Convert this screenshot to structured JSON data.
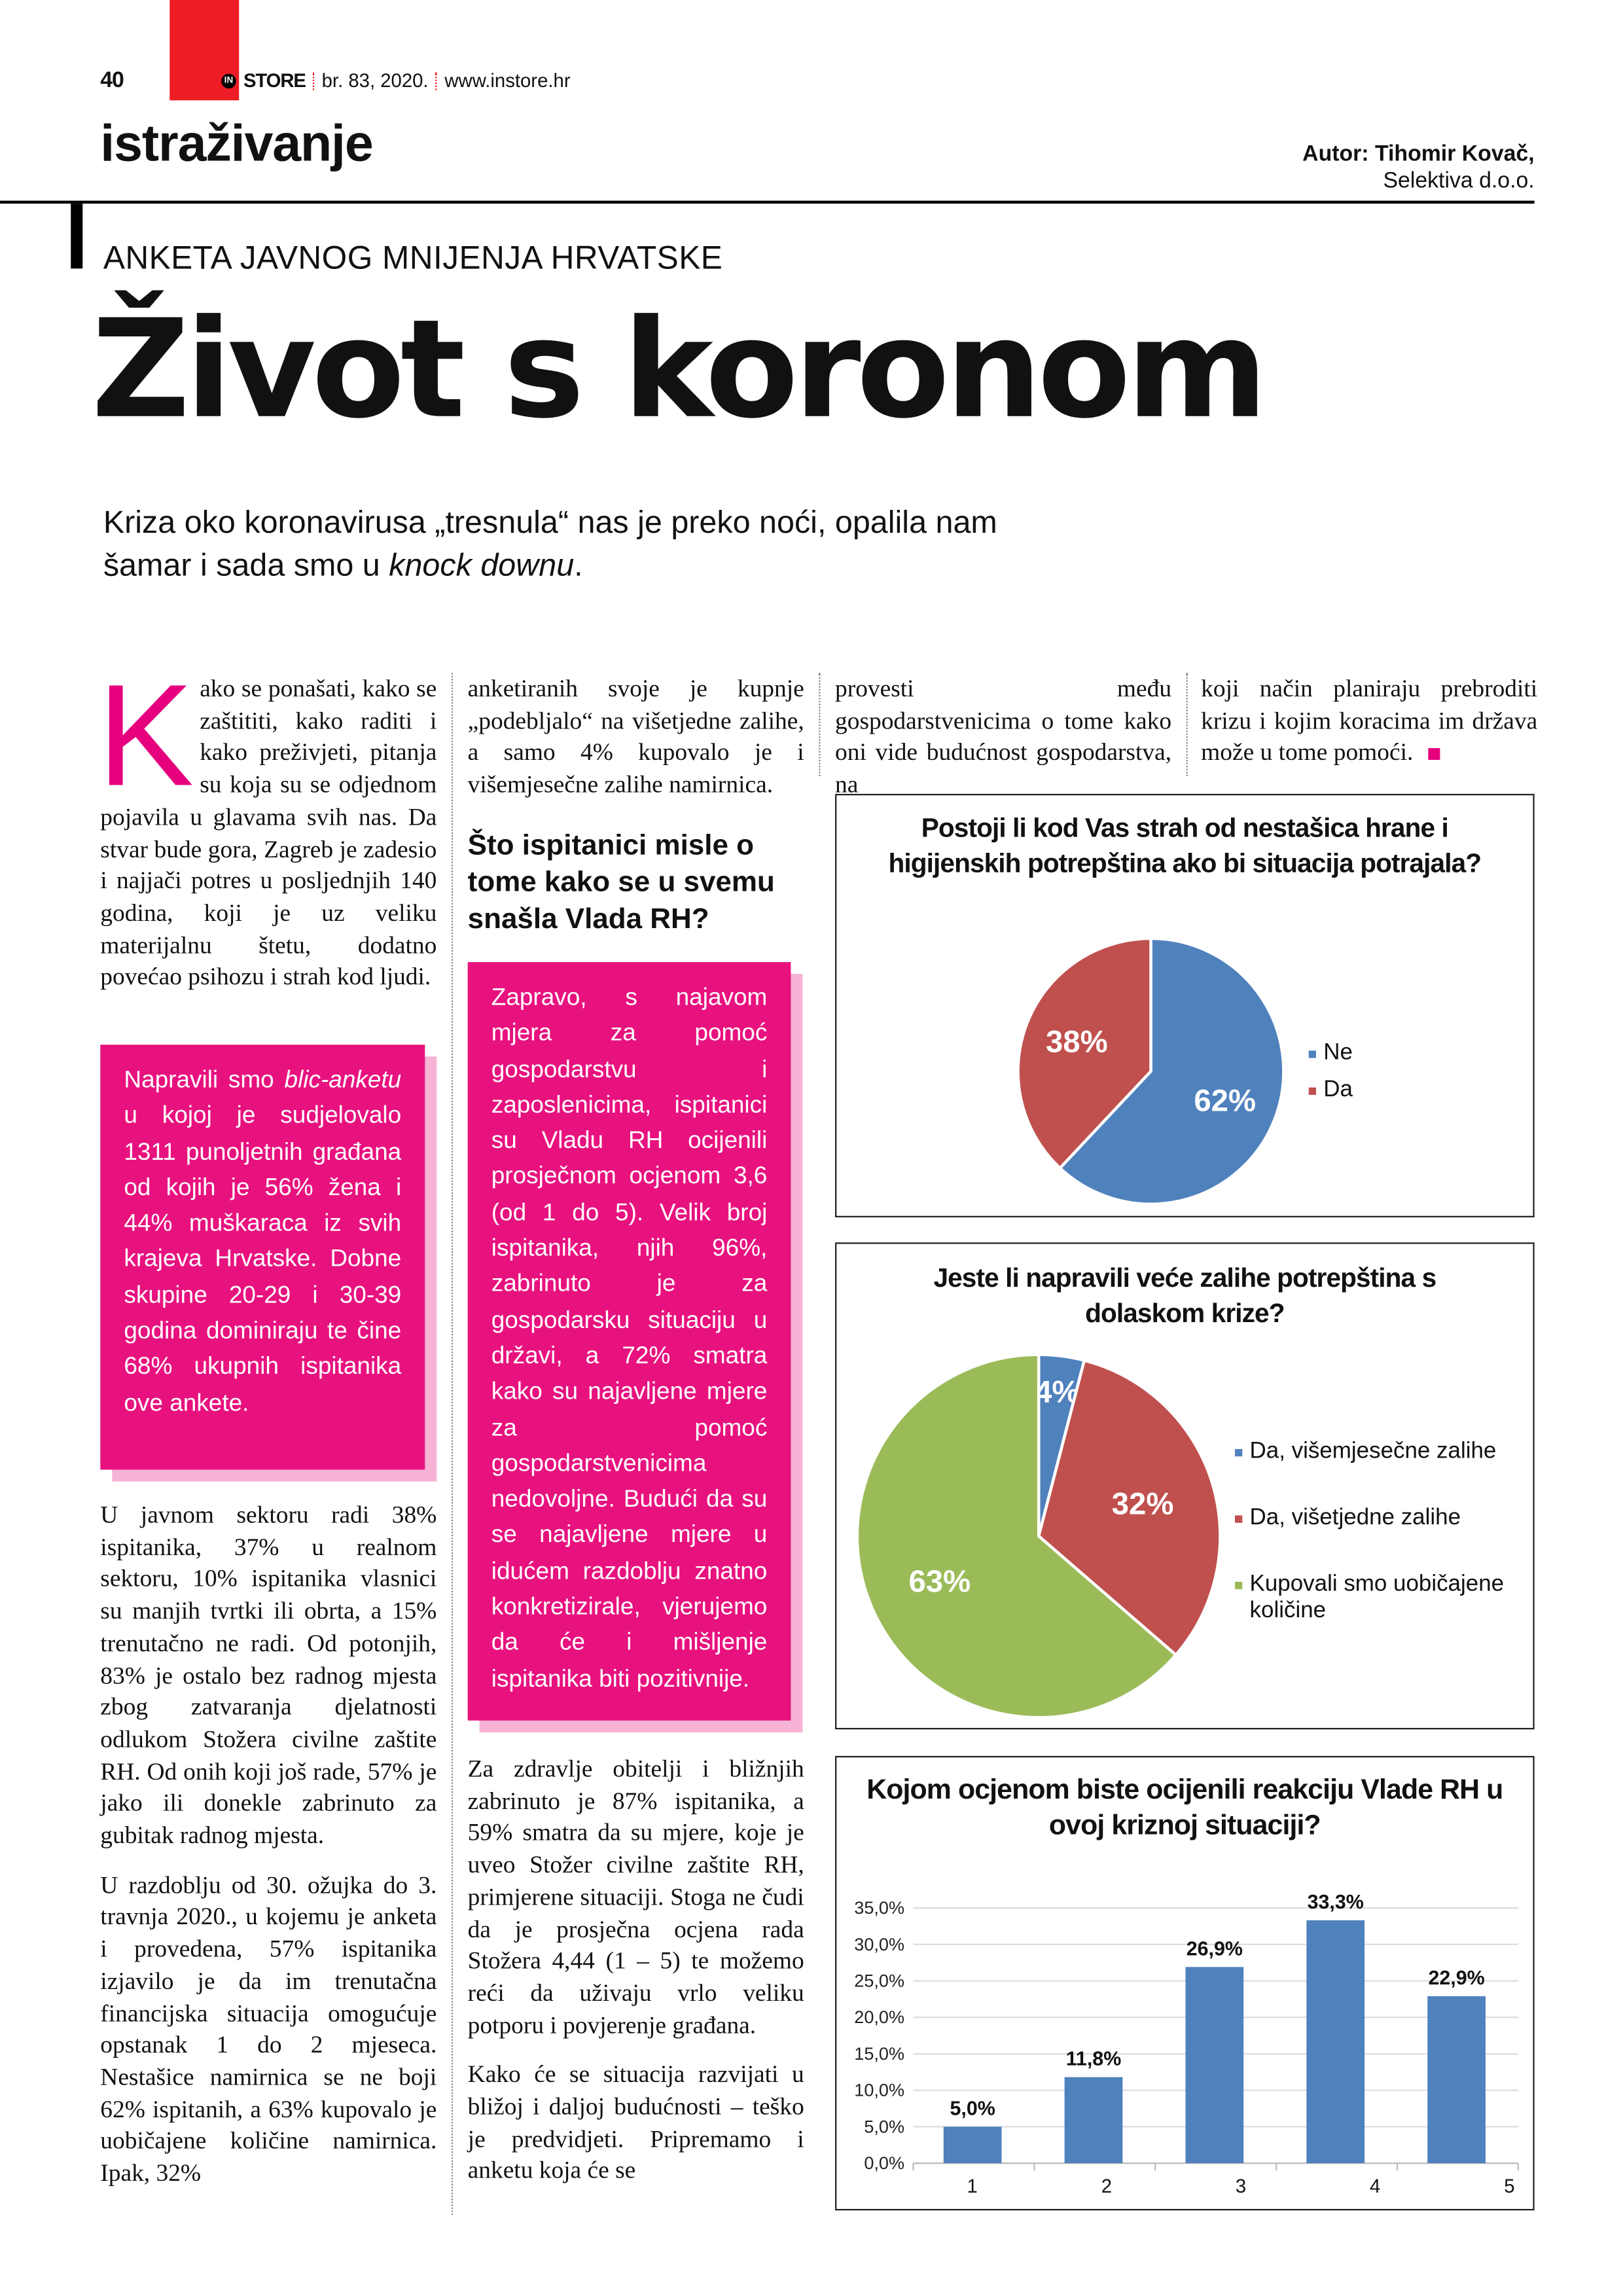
{
  "header": {
    "page_number": "40",
    "logo_in": "IN",
    "brand": "STORE",
    "issue": "br. 83, 2020.",
    "website": "www.instore.hr",
    "section": "istraživanje",
    "author_label": "Autor: Tihomir Kovač,",
    "author_company": "Selektiva d.o.o.",
    "accent_red": "#ee1c25"
  },
  "article": {
    "kicker": "ANKETA JAVNOG MNIJENJA HRVATSKE",
    "title": "Život s koronom",
    "deck_before": "Kriza oko koronavirusa „tresnula“ nas je preko noći, opalila nam šamar i sada smo u ",
    "deck_italic": "knock downu",
    "deck_after": ".",
    "accent_pink": "#e8127f",
    "col1": {
      "dropcap": "K",
      "p1": "ako se ponašati, kako se zaštititi, kako raditi i kako preživjeti, pitanja su koja su se odjednom pojavila u glavama svih nas. Da stvar bude gora, Zagreb je zadesio i najjači potres u posljednjih 140 godina, koji je uz veliku materijalnu štetu, dodatno povećao psihozu i strah kod ljudi.",
      "box_a": "Napravili smo ",
      "box_italic": "blic-anketu",
      "box_b": " u kojoj je sudjelovalo 1311 punoljetnih građana od kojih je 56% žena i 44% muškaraca iz svih krajeva Hrvatske. Dobne skupine 20-29 i 30-39 godina dominiraju te čine 68% ukupnih ispitanika ove ankete.",
      "p2": "U javnom sektoru radi 38% ispitanika, 37% u realnom sektoru, 10% ispitanika vlasnici su manjih tvrtki ili obrta, a 15% trenutačno ne radi. Od potonjih, 83% je ostalo bez radnog mjesta zbog zatvaranja djelatnosti odlukom Stožera civilne zaštite RH. Od onih koji još rade, 57% je jako ili donekle zabrinuto za gubitak radnog mjesta.",
      "p3": "U razdoblju od 30. ožujka do 3. travnja 2020., u kojemu je anketa i provedena, 57% ispitanika izjavilo je da im trenutačna financijska situacija omogućuje opstanak 1 do 2 mjeseca. Nestašice namirnica se ne boji 62% ispitanih, a 63% kupovalo je uobičajene količine namirnica. Ipak, 32%"
    },
    "col2": {
      "p1": "anketiranih svoje je kupnje „podebljalo“ na višetjedne zalihe, a samo 4% kupovalo je i višemjesečne zalihe namirnica.",
      "subhead": "Što ispitanici misle o tome kako se u svemu snašla Vlada RH?",
      "box": "Zapravo, s najavom mjera za pomoć gospodarstvu i zaposlenicima, ispitanici su Vladu RH ocijenili prosječnom ocjenom 3,6 (od 1 do 5). Velik broj ispitanika, njih 96%, zabrinuto je za gospodarsku situaciju u državi, a 72% smatra kako su najavljene mjere za pomoć gospodarstvenicima nedovoljne. Budući da su se najavljene mjere u idućem razdoblju znatno konkretizirale, vjerujemo da će i mišljenje ispitanika biti pozitivnije.",
      "p2": "Za zdravlje obitelji i bližnjih zabrinuto je 87% ispitanika, a 59% smatra da su mjere, koje je uveo Stožer civilne zaštite RH, primjerene situaciji. Stoga ne čudi da je prosječna ocjena rada Stožera 4,44 (1 – 5) te možemo reći da uživaju vrlo veliku potporu i povjerenje građana.",
      "p3": "Kako će se situacija razvijati u bližoj i daljoj budućnosti – teško je predvidjeti. Pripremamo i anketu koja će se"
    },
    "col3": {
      "p1": "provesti među gospodarstvenicima o tome kako oni vide budućnost gospodarstva, na"
    },
    "col4": {
      "p1": "koji način planiraju prebroditi krizu i kojim koracima im država može u tome pomoći."
    }
  },
  "chart_data": [
    {
      "type": "pie",
      "title": "Postoji li kod Vas strah od nestašica hrane i higijenskih potrepština ako bi situacija potrajala?",
      "categories": [
        "Ne",
        "Da"
      ],
      "values": [
        62,
        38
      ],
      "labels": [
        "62%",
        "38%"
      ],
      "colors": [
        "#4f81bd",
        "#c0504d"
      ],
      "legend": "right"
    },
    {
      "type": "pie",
      "title": "Jeste li napravili veće zalihe potrepština s dolaskom krize?",
      "categories": [
        "Da, višemjesečne zalihe",
        "Da, višetjedne zalihe",
        "Kupovali smo uobičajene količine"
      ],
      "values": [
        4,
        32,
        63
      ],
      "labels": [
        "4%",
        "32%",
        "63%"
      ],
      "colors": [
        "#4f81bd",
        "#c0504d",
        "#9bbb59"
      ],
      "legend": "right"
    },
    {
      "type": "bar",
      "title": "Kojom ocjenom biste ocijenili reakciju Vlade RH u ovoj kriznoj situaciji?",
      "categories": [
        "1",
        "2",
        "3",
        "4",
        "5"
      ],
      "values": [
        5.0,
        11.8,
        26.9,
        33.3,
        22.9
      ],
      "labels": [
        "5,0%",
        "11,8%",
        "26,9%",
        "33,3%",
        "22,9%"
      ],
      "yticks": [
        "0,0%",
        "5,0%",
        "10,0%",
        "15,0%",
        "20,0%",
        "25,0%",
        "30,0%",
        "35,0%"
      ],
      "ylim": [
        0,
        35
      ],
      "grid": true,
      "color": "#4f81bd"
    }
  ]
}
